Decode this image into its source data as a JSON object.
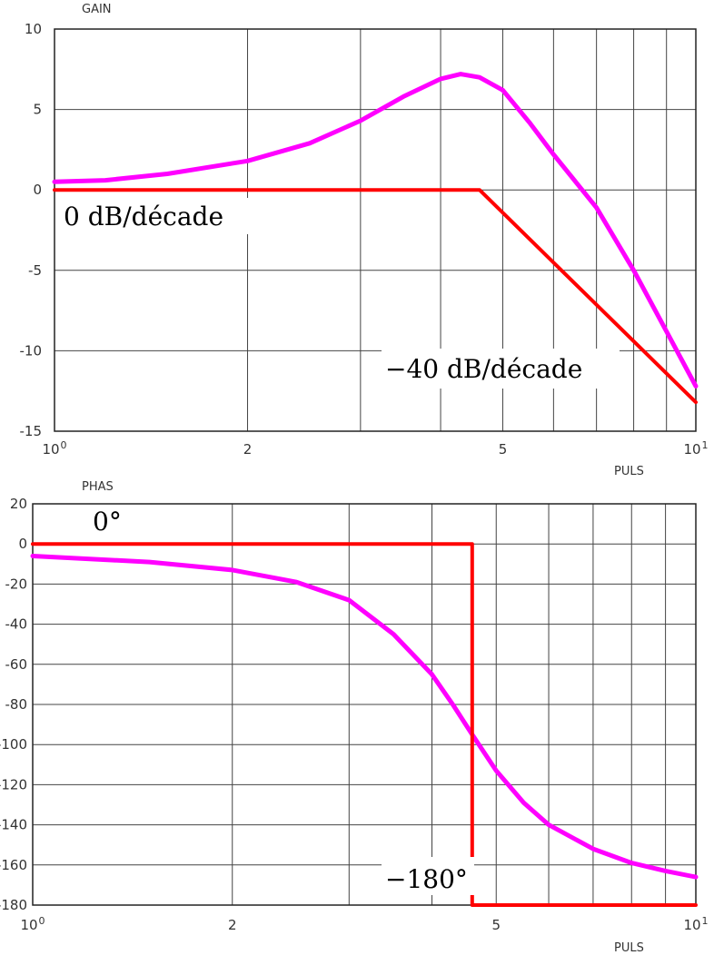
{
  "chart_data": [
    {
      "type": "line",
      "title": "GAIN",
      "xlabel": "PULS",
      "ylabel": "",
      "x_scale": "log10",
      "xlim": [
        1,
        10
      ],
      "ylim": [
        -15,
        10
      ],
      "grid": true,
      "x_ticks": [
        1,
        2,
        3,
        4,
        5,
        6,
        7,
        8,
        9,
        10
      ],
      "x_tick_labels": [
        {
          "x": 1,
          "base": "10",
          "exp": "0"
        },
        {
          "x": 2,
          "base": "2",
          "exp": ""
        },
        {
          "x": 5,
          "base": "5",
          "exp": ""
        },
        {
          "x": 10,
          "base": "10",
          "exp": "1"
        }
      ],
      "y_ticks": [
        10,
        5,
        0,
        -5,
        -10,
        -15
      ],
      "y_tick_labels": [
        "10",
        "5",
        "0",
        "-5",
        "-10",
        "-15"
      ],
      "series": [
        {
          "color": "#ff00ff",
          "x": [
            1,
            1.2,
            1.5,
            2,
            2.5,
            3,
            3.5,
            4,
            4.3,
            4.6,
            5,
            5.5,
            6,
            7,
            8,
            9,
            10
          ],
          "y": [
            0.5,
            0.6,
            1.0,
            1.8,
            2.9,
            4.3,
            5.8,
            6.9,
            7.2,
            7.0,
            6.2,
            4.2,
            2.2,
            -1.1,
            -5.0,
            -8.8,
            -12.2
          ]
        },
        {
          "color": "#ff0000",
          "x": [
            1,
            4.6,
            10
          ],
          "y": [
            0,
            0,
            -13.2
          ]
        }
      ],
      "annotations": [
        "0 dB/décade",
        "−40 dB/décade"
      ]
    },
    {
      "type": "line",
      "title": "PHAS",
      "xlabel": "PULS",
      "ylabel": "",
      "x_scale": "log10",
      "xlim": [
        1,
        10
      ],
      "ylim": [
        -180,
        20
      ],
      "grid": true,
      "x_ticks": [
        1,
        2,
        3,
        4,
        5,
        6,
        7,
        8,
        9,
        10
      ],
      "x_tick_labels": [
        {
          "x": 1,
          "base": "10",
          "exp": "0"
        },
        {
          "x": 2,
          "base": "2",
          "exp": ""
        },
        {
          "x": 5,
          "base": "5",
          "exp": ""
        },
        {
          "x": 10,
          "base": "10",
          "exp": "1"
        }
      ],
      "y_ticks": [
        20,
        0,
        -20,
        -40,
        -60,
        -80,
        -100,
        -120,
        -140,
        -160,
        -180
      ],
      "y_tick_labels": [
        "20",
        "0",
        "-20",
        "-40",
        "-60",
        "-80",
        "-100",
        "-120",
        "-140",
        "-160",
        "-180"
      ],
      "series": [
        {
          "color": "#ff00ff",
          "x": [
            1,
            1.5,
            2,
            2.5,
            3,
            3.5,
            4,
            4.3,
            4.6,
            5,
            5.5,
            6,
            7,
            8,
            9,
            10
          ],
          "y": [
            -6,
            -9,
            -13,
            -19,
            -28,
            -45,
            -65,
            -80,
            -95,
            -113,
            -129,
            -140,
            -152,
            -159,
            -163,
            -166
          ]
        },
        {
          "color": "#ff0000",
          "x": [
            1,
            4.6,
            4.6,
            10
          ],
          "y": [
            0,
            0,
            -180,
            -180
          ]
        }
      ],
      "annotations": [
        "0°",
        "−180°"
      ]
    }
  ]
}
